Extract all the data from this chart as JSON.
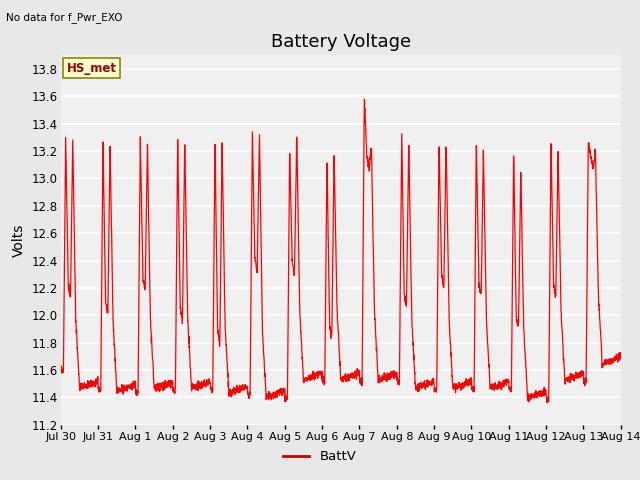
{
  "title": "Battery Voltage",
  "ylabel": "Volts",
  "top_left_text": "No data for f_Pwr_EXO",
  "legend_label": "BattV",
  "line_color": "#FF0000",
  "legend_line_color": "#CC0000",
  "annotation_box_label": "HS_met",
  "annotation_box_facecolor": "#FFFFCC",
  "annotation_box_edgecolor": "#888800",
  "annotation_box_textcolor": "#990000",
  "ylim": [
    11.2,
    13.9
  ],
  "yticks": [
    11.2,
    11.4,
    11.6,
    11.8,
    12.0,
    12.2,
    12.4,
    12.6,
    12.8,
    13.0,
    13.2,
    13.4,
    13.6,
    13.8
  ],
  "x_tick_labels": [
    "Jul 30",
    "Jul 31",
    "Aug 1",
    "Aug 2",
    "Aug 3",
    "Aug 4",
    "Aug 5",
    "Aug 6",
    "Aug 7",
    "Aug 8",
    "Aug 9",
    "Aug 10",
    "Aug 11",
    "Aug 12",
    "Aug 13",
    "Aug 14"
  ],
  "background_color": "#E8E8E8",
  "plot_bg_color": "#F0F0F0",
  "grid_color": "#FFFFFF",
  "title_fontsize": 13,
  "axis_label_fontsize": 10,
  "tick_fontsize": 8.5
}
